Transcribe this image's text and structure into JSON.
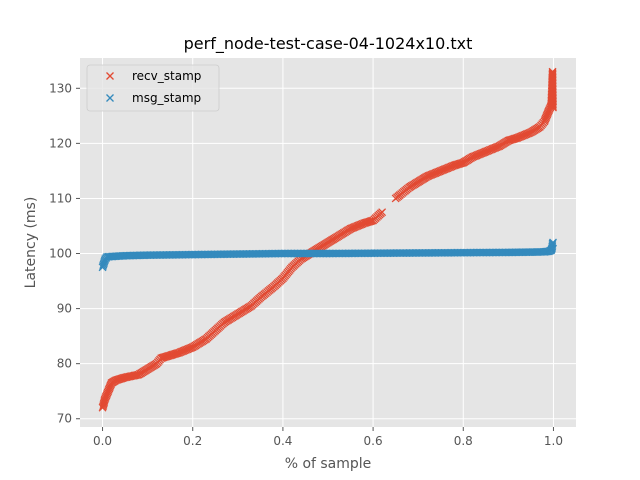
{
  "chart_data": {
    "type": "scatter",
    "title": "perf_node-test-case-04-1024x10.txt",
    "xlabel": "% of sample",
    "ylabel": "Latency (ms)",
    "xlim": [
      -0.05,
      1.05
    ],
    "ylim": [
      68.5,
      135.5
    ],
    "xticks": [
      0.0,
      0.2,
      0.4,
      0.6,
      0.8,
      1.0
    ],
    "xtick_labels": [
      "0.0",
      "0.2",
      "0.4",
      "0.6",
      "0.8",
      "1.0"
    ],
    "yticks": [
      70,
      80,
      90,
      100,
      110,
      120,
      130
    ],
    "ytick_labels": [
      "70",
      "80",
      "90",
      "100",
      "110",
      "120",
      "130"
    ],
    "grid": true,
    "legend_position": "top-left",
    "marker": "x",
    "series": [
      {
        "name": "recv_stamp",
        "color": "#E24A33",
        "x": [
          0.0,
          0.002,
          0.005,
          0.01,
          0.015,
          0.02,
          0.03,
          0.05,
          0.08,
          0.1,
          0.12,
          0.13,
          0.15,
          0.17,
          0.2,
          0.23,
          0.25,
          0.27,
          0.3,
          0.33,
          0.35,
          0.38,
          0.4,
          0.42,
          0.44,
          0.46,
          0.48,
          0.5,
          0.52,
          0.55,
          0.58,
          0.6,
          0.62,
          0.65,
          0.68,
          0.7,
          0.72,
          0.75,
          0.78,
          0.8,
          0.82,
          0.85,
          0.88,
          0.9,
          0.92,
          0.95,
          0.97,
          0.98,
          0.985,
          0.99,
          0.993,
          0.995,
          0.997,
          0.998,
          0.999
        ],
        "y": [
          72.0,
          72.5,
          73.5,
          74.5,
          75.5,
          76.5,
          77.0,
          77.5,
          78.0,
          79.0,
          80.0,
          81.0,
          81.5,
          82.0,
          83.0,
          84.5,
          86.0,
          87.5,
          89.0,
          90.5,
          92.0,
          94.0,
          95.5,
          97.5,
          99.0,
          100.0,
          101.0,
          102.0,
          103.0,
          104.5,
          105.5,
          106.0,
          107.5,
          110.0,
          112.0,
          113.0,
          114.0,
          115.0,
          116.0,
          116.5,
          117.5,
          118.5,
          119.5,
          120.5,
          121.0,
          122.0,
          123.0,
          124.0,
          125.0,
          126.0,
          126.5,
          127.0,
          131.0,
          133.0,
          126.5
        ]
      },
      {
        "name": "msg_stamp",
        "color": "#348ABD",
        "x": [
          0.0,
          0.002,
          0.004,
          0.006,
          0.01,
          0.05,
          0.1,
          0.2,
          0.3,
          0.4,
          0.5,
          0.6,
          0.7,
          0.8,
          0.9,
          0.95,
          0.98,
          0.99,
          0.995,
          0.997,
          0.998,
          0.999
        ],
        "y": [
          97.5,
          98.0,
          98.5,
          99.0,
          99.4,
          99.6,
          99.7,
          99.8,
          99.9,
          100.0,
          100.0,
          100.05,
          100.1,
          100.15,
          100.2,
          100.25,
          100.3,
          100.4,
          100.6,
          101.0,
          101.8,
          102.0
        ]
      }
    ]
  }
}
